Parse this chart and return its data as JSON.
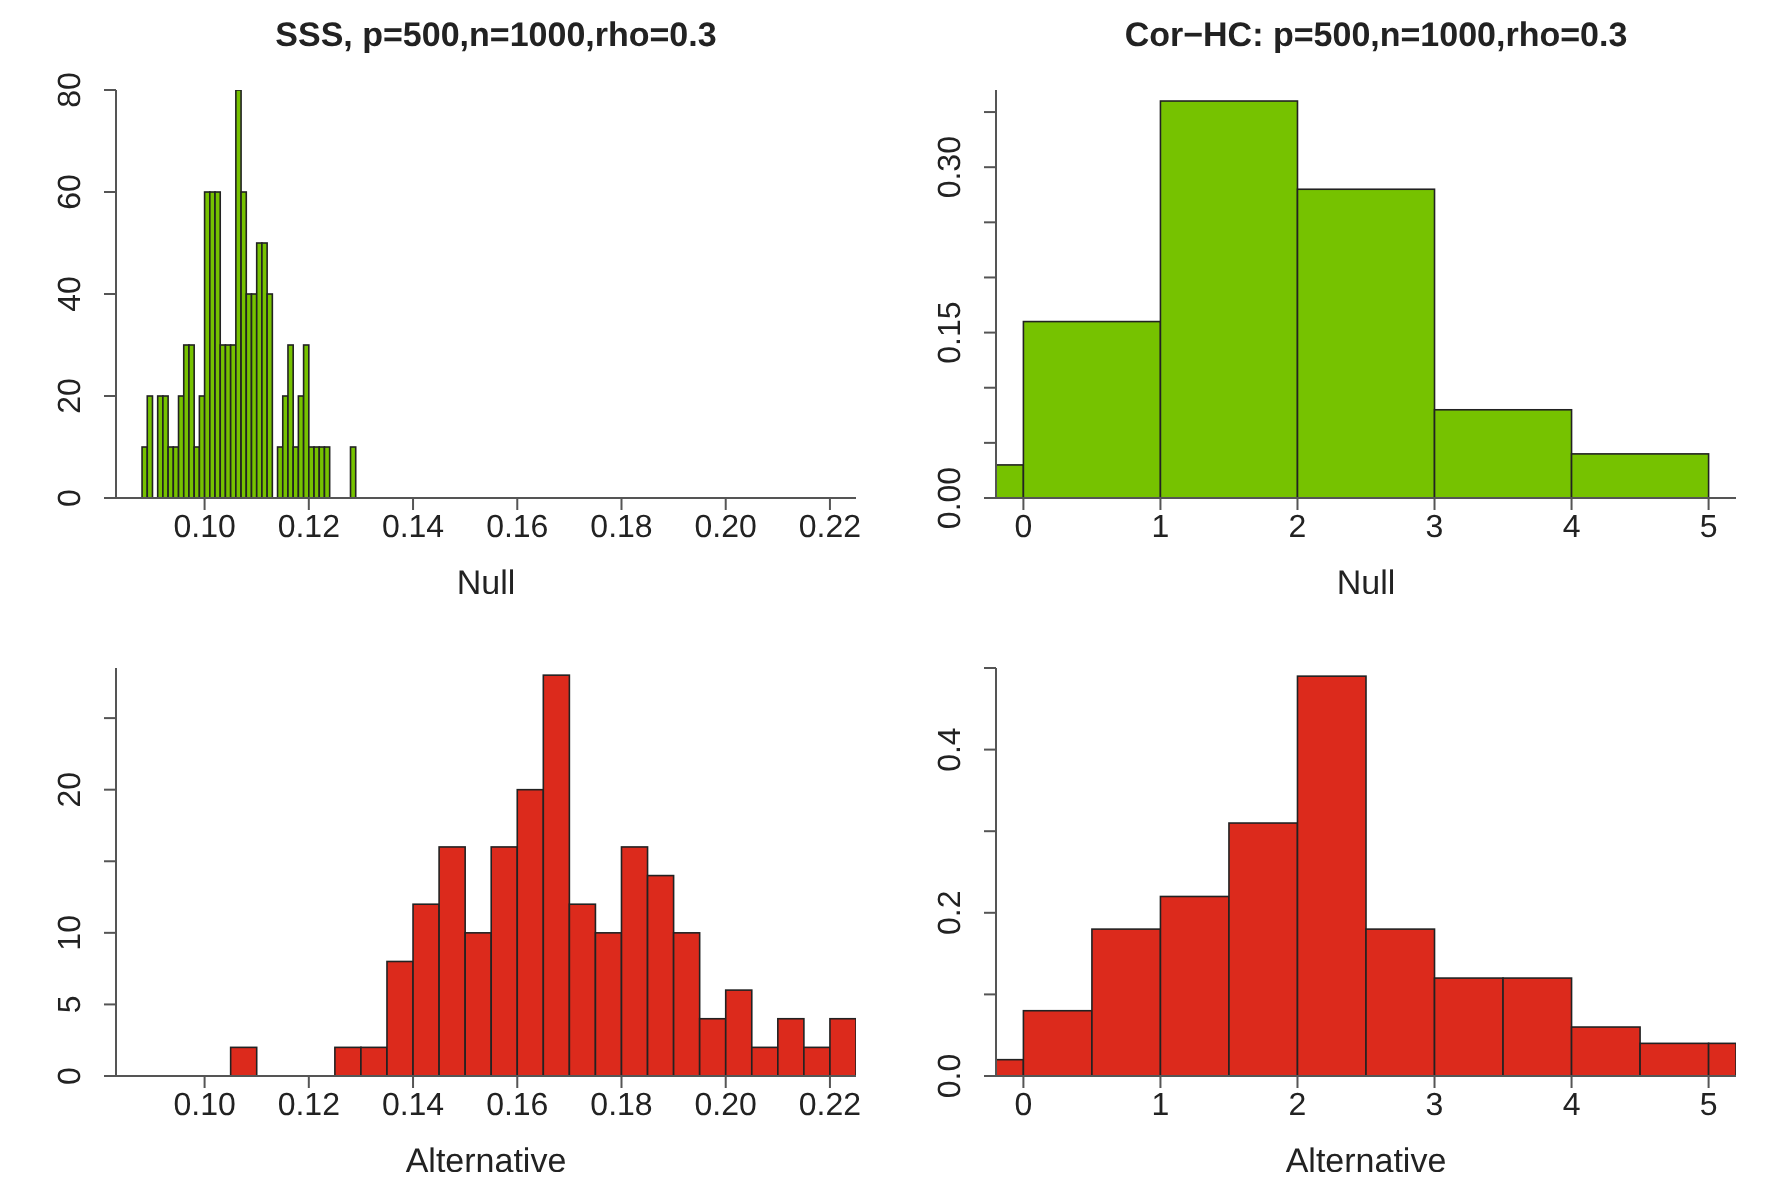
{
  "chart_data": [
    {
      "type": "histogram",
      "title": "SSS, p=500,n=1000,rho=0.3",
      "xlabel": "Null",
      "color": "#76c200",
      "bins": [
        0.088,
        0.089,
        0.09,
        0.091,
        0.092,
        0.093,
        0.094,
        0.095,
        0.096,
        0.097,
        0.098,
        0.099,
        0.1,
        0.101,
        0.102,
        0.103,
        0.104,
        0.105,
        0.106,
        0.107,
        0.108,
        0.109,
        0.11,
        0.111,
        0.112,
        0.113,
        0.114,
        0.115,
        0.116,
        0.117,
        0.118,
        0.119,
        0.12,
        0.121,
        0.122,
        0.123,
        0.124,
        0.125,
        0.126,
        0.127,
        0.128,
        0.129
      ],
      "values": [
        10,
        20,
        0,
        20,
        20,
        10,
        10,
        20,
        30,
        30,
        10,
        20,
        60,
        60,
        60,
        30,
        30,
        30,
        80,
        60,
        40,
        40,
        50,
        50,
        40,
        0,
        10,
        20,
        30,
        10,
        20,
        30,
        10,
        10,
        10,
        10,
        0,
        0,
        0,
        0,
        10
      ],
      "xlim": [
        0.083,
        0.225
      ],
      "xticks": [
        {
          "value": 0.1,
          "label": "0.10"
        },
        {
          "value": 0.12,
          "label": "0.12"
        },
        {
          "value": 0.14,
          "label": "0.14"
        },
        {
          "value": 0.16,
          "label": "0.16"
        },
        {
          "value": 0.18,
          "label": "0.18"
        },
        {
          "value": 0.2,
          "label": "0.20"
        },
        {
          "value": 0.22,
          "label": "0.22"
        }
      ],
      "ylim": [
        0,
        80
      ],
      "yticks": [
        0,
        20,
        40,
        60,
        80
      ]
    },
    {
      "type": "histogram",
      "title": "Cor−HC: p=500,n=1000,rho=0.3",
      "xlabel": "Null",
      "color": "#76c200",
      "bins": [
        -0.2,
        0,
        1,
        2,
        3,
        4,
        5
      ],
      "values": [
        0.03,
        0.16,
        0.36,
        0.28,
        0.08,
        0.04
      ],
      "xlim": [
        -0.2,
        5.2
      ],
      "xticks": [
        0,
        1,
        2,
        3,
        4,
        5
      ],
      "ylim": [
        0,
        0.37
      ],
      "yticks": [
        {
          "value": 0,
          "label": "0.00"
        },
        {
          "value": 0.05,
          "label": null
        },
        {
          "value": 0.1,
          "label": null
        },
        {
          "value": 0.15,
          "label": "0.15"
        },
        {
          "value": 0.2,
          "label": null
        },
        {
          "value": 0.25,
          "label": null
        },
        {
          "value": 0.3,
          "label": "0.30"
        },
        {
          "value": 0.35,
          "label": null
        }
      ]
    },
    {
      "type": "histogram",
      "xlabel": "Alternative",
      "color": "#dc2a1c",
      "bins": [
        0.105,
        0.11,
        0.115,
        0.12,
        0.125,
        0.13,
        0.135,
        0.14,
        0.145,
        0.15,
        0.155,
        0.16,
        0.165,
        0.17,
        0.175,
        0.18,
        0.185,
        0.19,
        0.195,
        0.2,
        0.205,
        0.21,
        0.215,
        0.22,
        0.225
      ],
      "values": [
        2,
        0,
        0,
        0,
        2,
        2,
        8,
        12,
        16,
        10,
        16,
        20,
        28,
        12,
        10,
        16,
        14,
        10,
        4,
        6,
        2,
        4,
        2,
        4
      ],
      "xlim": [
        0.083,
        0.225
      ],
      "xticks": [
        {
          "value": 0.1,
          "label": "0.10"
        },
        {
          "value": 0.12,
          "label": "0.12"
        },
        {
          "value": 0.14,
          "label": "0.14"
        },
        {
          "value": 0.16,
          "label": "0.16"
        },
        {
          "value": 0.18,
          "label": "0.18"
        },
        {
          "value": 0.2,
          "label": "0.20"
        },
        {
          "value": 0.22,
          "label": "0.22"
        }
      ],
      "ylim": [
        0,
        28.5
      ],
      "yticks": [
        0,
        5,
        10,
        {
          "value": 15,
          "label": null
        },
        20,
        {
          "value": 25,
          "label": null
        }
      ]
    },
    {
      "type": "histogram",
      "xlabel": "Alternative",
      "color": "#dc2a1c",
      "bins": [
        -0.2,
        0,
        0.5,
        1,
        1.5,
        2,
        2.5,
        3,
        3.5,
        4,
        4.5,
        5,
        5.2
      ],
      "values": [
        0.02,
        0.08,
        0.18,
        0.22,
        0.31,
        0.49,
        0.18,
        0.12,
        0.12,
        0.06,
        0.04,
        0.04
      ],
      "xlim": [
        -0.2,
        5.2
      ],
      "xticks": [
        0,
        1,
        2,
        3,
        4,
        5
      ],
      "ylim": [
        0,
        0.5
      ],
      "yticks": [
        {
          "value": 0,
          "label": "0.0"
        },
        {
          "value": 0.1,
          "label": null
        },
        {
          "value": 0.2,
          "label": "0.2"
        },
        {
          "value": 0.3,
          "label": null
        },
        {
          "value": 0.4,
          "label": "0.4"
        },
        {
          "value": 0.5,
          "label": null
        }
      ]
    }
  ]
}
